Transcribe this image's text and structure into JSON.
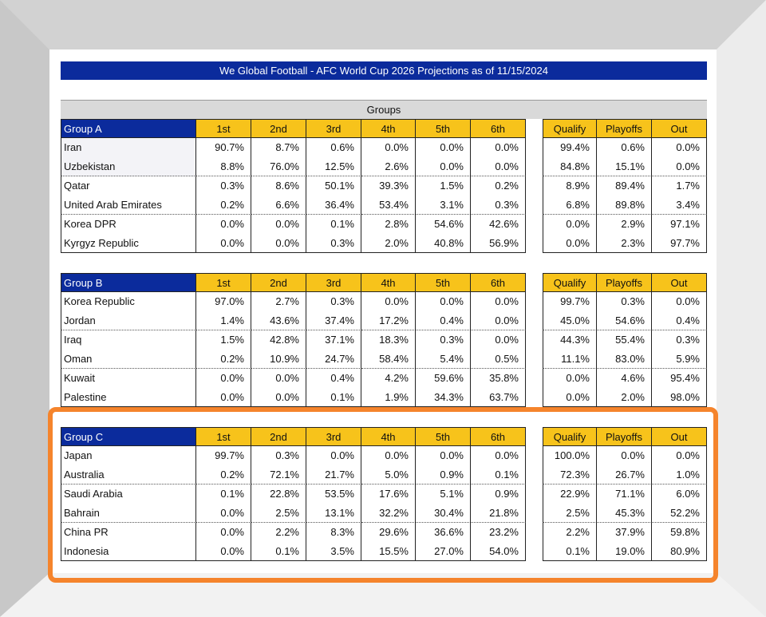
{
  "title": "We Global Football - AFC World Cup 2026 Projections as of 11/15/2024",
  "section_header": "Groups",
  "groups": [
    {
      "name": "Group A",
      "columns": [
        "1st",
        "2nd",
        "3rd",
        "4th",
        "5th",
        "6th",
        "Qualify",
        "Playoffs",
        "Out"
      ],
      "rows": [
        {
          "team": "Iran",
          "values": [
            "90.7%",
            "8.7%",
            "0.6%",
            "0.0%",
            "0.0%",
            "0.0%",
            "99.4%",
            "0.6%",
            "0.0%"
          ]
        },
        {
          "team": "Uzbekistan",
          "values": [
            "8.8%",
            "76.0%",
            "12.5%",
            "2.6%",
            "0.0%",
            "0.0%",
            "84.8%",
            "15.1%",
            "0.0%"
          ]
        },
        {
          "team": "Qatar",
          "values": [
            "0.3%",
            "8.6%",
            "50.1%",
            "39.3%",
            "1.5%",
            "0.2%",
            "8.9%",
            "89.4%",
            "1.7%"
          ]
        },
        {
          "team": "United Arab Emirates",
          "values": [
            "0.2%",
            "6.6%",
            "36.4%",
            "53.4%",
            "3.1%",
            "0.3%",
            "6.8%",
            "89.8%",
            "3.4%"
          ]
        },
        {
          "team": "Korea DPR",
          "values": [
            "0.0%",
            "0.0%",
            "0.1%",
            "2.8%",
            "54.6%",
            "42.6%",
            "0.0%",
            "2.9%",
            "97.1%"
          ]
        },
        {
          "team": "Kyrgyz Republic",
          "values": [
            "0.0%",
            "0.0%",
            "0.3%",
            "2.0%",
            "40.8%",
            "56.9%",
            "0.0%",
            "2.3%",
            "97.7%"
          ]
        }
      ]
    },
    {
      "name": "Group B",
      "columns": [
        "1st",
        "2nd",
        "3rd",
        "4th",
        "5th",
        "6th",
        "Qualify",
        "Playoffs",
        "Out"
      ],
      "rows": [
        {
          "team": "Korea Republic",
          "values": [
            "97.0%",
            "2.7%",
            "0.3%",
            "0.0%",
            "0.0%",
            "0.0%",
            "99.7%",
            "0.3%",
            "0.0%"
          ]
        },
        {
          "team": "Jordan",
          "values": [
            "1.4%",
            "43.6%",
            "37.4%",
            "17.2%",
            "0.4%",
            "0.0%",
            "45.0%",
            "54.6%",
            "0.4%"
          ]
        },
        {
          "team": "Iraq",
          "values": [
            "1.5%",
            "42.8%",
            "37.1%",
            "18.3%",
            "0.3%",
            "0.0%",
            "44.3%",
            "55.4%",
            "0.3%"
          ]
        },
        {
          "team": "Oman",
          "values": [
            "0.2%",
            "10.9%",
            "24.7%",
            "58.4%",
            "5.4%",
            "0.5%",
            "11.1%",
            "83.0%",
            "5.9%"
          ]
        },
        {
          "team": "Kuwait",
          "values": [
            "0.0%",
            "0.0%",
            "0.4%",
            "4.2%",
            "59.6%",
            "35.8%",
            "0.0%",
            "4.6%",
            "95.4%"
          ]
        },
        {
          "team": "Palestine",
          "values": [
            "0.0%",
            "0.0%",
            "0.1%",
            "1.9%",
            "34.3%",
            "63.7%",
            "0.0%",
            "2.0%",
            "98.0%"
          ]
        }
      ]
    },
    {
      "name": "Group C",
      "columns": [
        "1st",
        "2nd",
        "3rd",
        "4th",
        "5th",
        "6th",
        "Qualify",
        "Playoffs",
        "Out"
      ],
      "rows": [
        {
          "team": "Japan",
          "values": [
            "99.7%",
            "0.3%",
            "0.0%",
            "0.0%",
            "0.0%",
            "0.0%",
            "100.0%",
            "0.0%",
            "0.0%"
          ]
        },
        {
          "team": "Australia",
          "values": [
            "0.2%",
            "72.1%",
            "21.7%",
            "5.0%",
            "0.9%",
            "0.1%",
            "72.3%",
            "26.7%",
            "1.0%"
          ]
        },
        {
          "team": "Saudi Arabia",
          "values": [
            "0.1%",
            "22.8%",
            "53.5%",
            "17.6%",
            "5.1%",
            "0.9%",
            "22.9%",
            "71.1%",
            "6.0%"
          ]
        },
        {
          "team": "Bahrain",
          "values": [
            "0.0%",
            "2.5%",
            "13.1%",
            "32.2%",
            "30.4%",
            "21.8%",
            "2.5%",
            "45.3%",
            "52.2%"
          ]
        },
        {
          "team": "China PR",
          "values": [
            "0.0%",
            "2.2%",
            "8.3%",
            "29.6%",
            "36.6%",
            "23.2%",
            "2.2%",
            "37.9%",
            "59.8%"
          ]
        },
        {
          "team": "Indonesia",
          "values": [
            "0.0%",
            "0.1%",
            "3.5%",
            "15.5%",
            "27.0%",
            "54.0%",
            "0.1%",
            "19.0%",
            "80.9%"
          ]
        }
      ]
    }
  ]
}
